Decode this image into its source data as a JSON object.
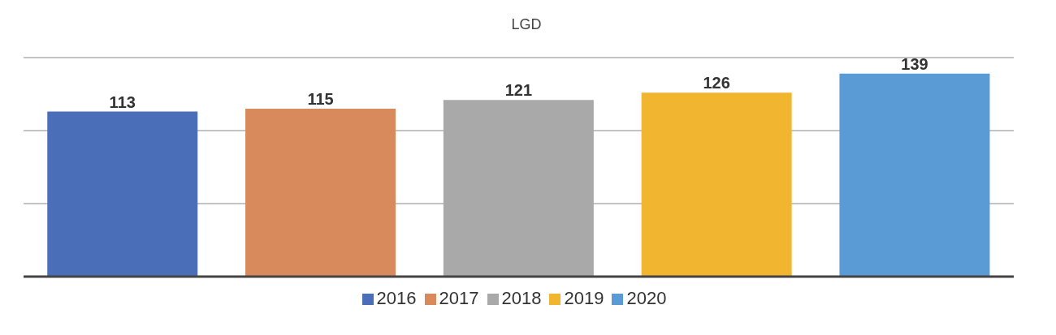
{
  "chart_data": {
    "type": "bar",
    "title": "LGD",
    "categories": [
      null,
      null,
      null,
      null,
      null
    ],
    "series": [
      {
        "name": "2016",
        "color": "#4a6fb8",
        "values": [
          113,
          null,
          null,
          null,
          null
        ]
      },
      {
        "name": "2017",
        "color": "#d98a5c",
        "values": [
          null,
          115,
          null,
          null,
          null
        ]
      },
      {
        "name": "2018",
        "color": "#a9a9a9",
        "values": [
          null,
          null,
          121,
          null,
          null
        ]
      },
      {
        "name": "2019",
        "color": "#f2b530",
        "values": [
          null,
          null,
          null,
          126,
          null
        ]
      },
      {
        "name": "2020",
        "color": "#5b9bd5",
        "values": [
          null,
          null,
          null,
          null,
          139
        ]
      }
    ],
    "ylim": [
      0,
      150
    ],
    "yticks": [
      {
        "value": 0,
        "label": null
      },
      {
        "value": 50,
        "label": null
      },
      {
        "value": 100,
        "label": null
      },
      {
        "value": 150,
        "label": null
      }
    ],
    "tick_labels": false,
    "stacked": true,
    "grid": "y",
    "legend": "bottom",
    "data_labels": true
  }
}
